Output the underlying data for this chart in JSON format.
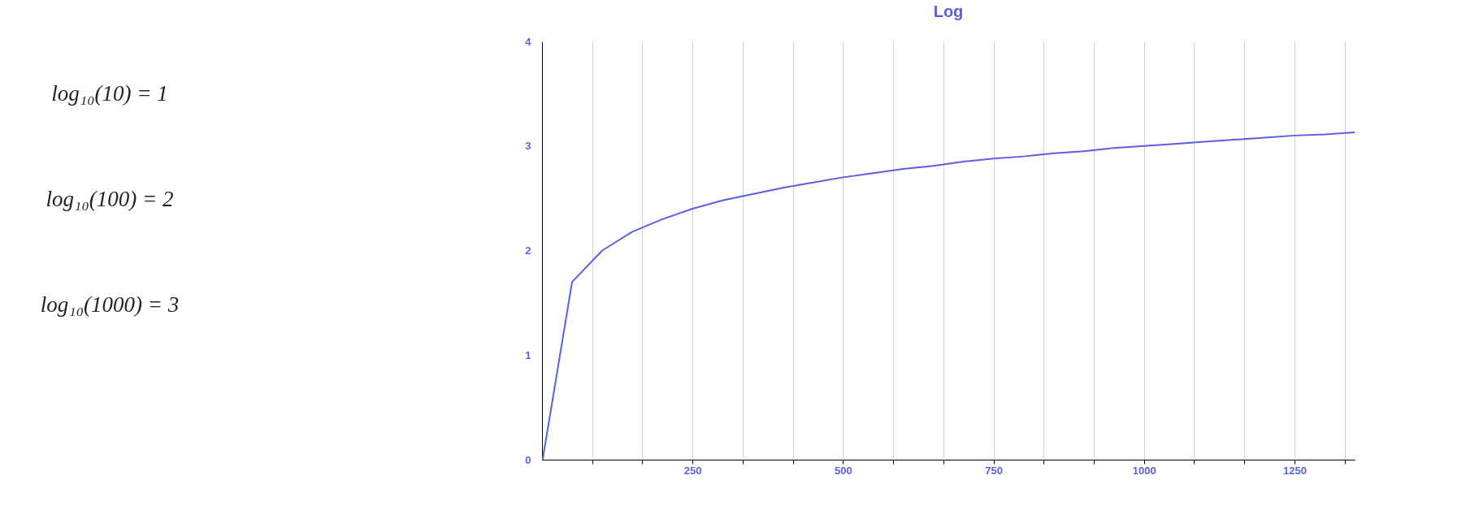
{
  "chart_data": {
    "type": "line",
    "title": "Log",
    "annotations": [
      "log₁₀(10) = 1",
      "log₁₀(100) = 2",
      "log₁₀(1000) = 3"
    ],
    "x": [
      1,
      50,
      100,
      150,
      200,
      250,
      300,
      350,
      400,
      450,
      500,
      550,
      600,
      650,
      700,
      750,
      800,
      850,
      900,
      950,
      1000,
      1050,
      1100,
      1150,
      1200,
      1250,
      1300,
      1350
    ],
    "series": [
      {
        "color": "#5a5ee0",
        "values": [
          0,
          1.7,
          2.0,
          2.18,
          2.3,
          2.4,
          2.48,
          2.54,
          2.6,
          2.65,
          2.7,
          2.74,
          2.78,
          2.81,
          2.85,
          2.88,
          2.9,
          2.93,
          2.95,
          2.98,
          3.0,
          3.02,
          3.04,
          3.06,
          3.08,
          3.1,
          3.11,
          3.13
        ]
      }
    ],
    "xlim": [
      0,
      1350
    ],
    "xticks": [
      {
        "value": 83.33,
        "label": null
      },
      {
        "value": 166.67,
        "label": null
      },
      250,
      {
        "value": 333.33,
        "label": null
      },
      {
        "value": 416.67,
        "label": null
      },
      500,
      {
        "value": 583.33,
        "label": null
      },
      {
        "value": 666.67,
        "label": null
      },
      750,
      {
        "value": 833.33,
        "label": null
      },
      {
        "value": 916.67,
        "label": null
      },
      1000,
      {
        "value": 1083.33,
        "label": null
      },
      {
        "value": 1166.67,
        "label": null
      },
      1250,
      {
        "value": 1333.33,
        "label": null
      }
    ],
    "ylim": [
      0,
      4
    ],
    "yticks": [
      0,
      1,
      2,
      3,
      4
    ],
    "grid": "x",
    "marker": "none",
    "line_style": "solid"
  }
}
